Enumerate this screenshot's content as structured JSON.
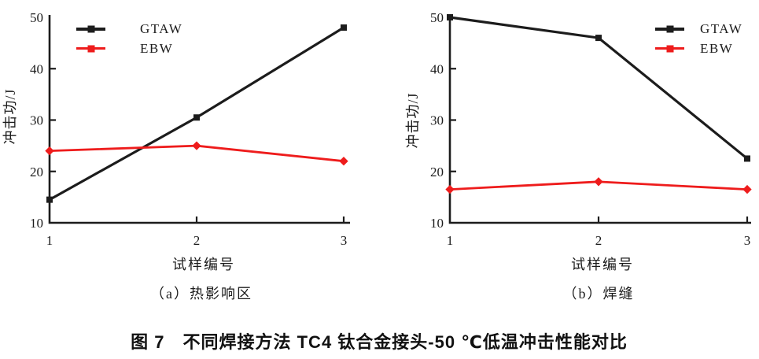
{
  "figure": {
    "caption": "图 7　不同焊接方法 TC4 钛合金接头-50 ℃低温冲击性能对比"
  },
  "colors": {
    "axis": "#1c1c1c",
    "gtaw": "#1c1c1c",
    "ebw": "#ee1c1c",
    "background": "#ffffff"
  },
  "chart_data": [
    {
      "type": "line",
      "panel": "a",
      "subtitle": "（a）热影响区",
      "xlabel": "试样编号",
      "ylabel": "冲击功/J",
      "x": [
        1,
        2,
        3
      ],
      "xlim": [
        1,
        3
      ],
      "ylim": [
        10,
        50
      ],
      "x_ticks": [
        1,
        2,
        3
      ],
      "y_ticks": [
        10,
        20,
        30,
        40,
        50
      ],
      "grid": false,
      "legend_position": "top-left",
      "series": [
        {
          "name": "GTAW",
          "color": "#1c1c1c",
          "marker": "square",
          "values": [
            14.5,
            30.5,
            48
          ]
        },
        {
          "name": "EBW",
          "color": "#ee1c1c",
          "marker": "diamond",
          "values": [
            24,
            25,
            22
          ]
        }
      ]
    },
    {
      "type": "line",
      "panel": "b",
      "subtitle": "（b）焊缝",
      "xlabel": "试样编号",
      "ylabel": "冲击功/J",
      "x": [
        1,
        2,
        3
      ],
      "xlim": [
        1,
        3
      ],
      "ylim": [
        10,
        50
      ],
      "x_ticks": [
        1,
        2,
        3
      ],
      "y_ticks": [
        10,
        20,
        30,
        40,
        50
      ],
      "grid": false,
      "legend_position": "top-right",
      "series": [
        {
          "name": "GTAW",
          "color": "#1c1c1c",
          "marker": "square",
          "values": [
            50,
            46,
            22.5
          ]
        },
        {
          "name": "EBW",
          "color": "#ee1c1c",
          "marker": "diamond",
          "values": [
            16.5,
            18,
            16.5
          ]
        }
      ]
    }
  ]
}
